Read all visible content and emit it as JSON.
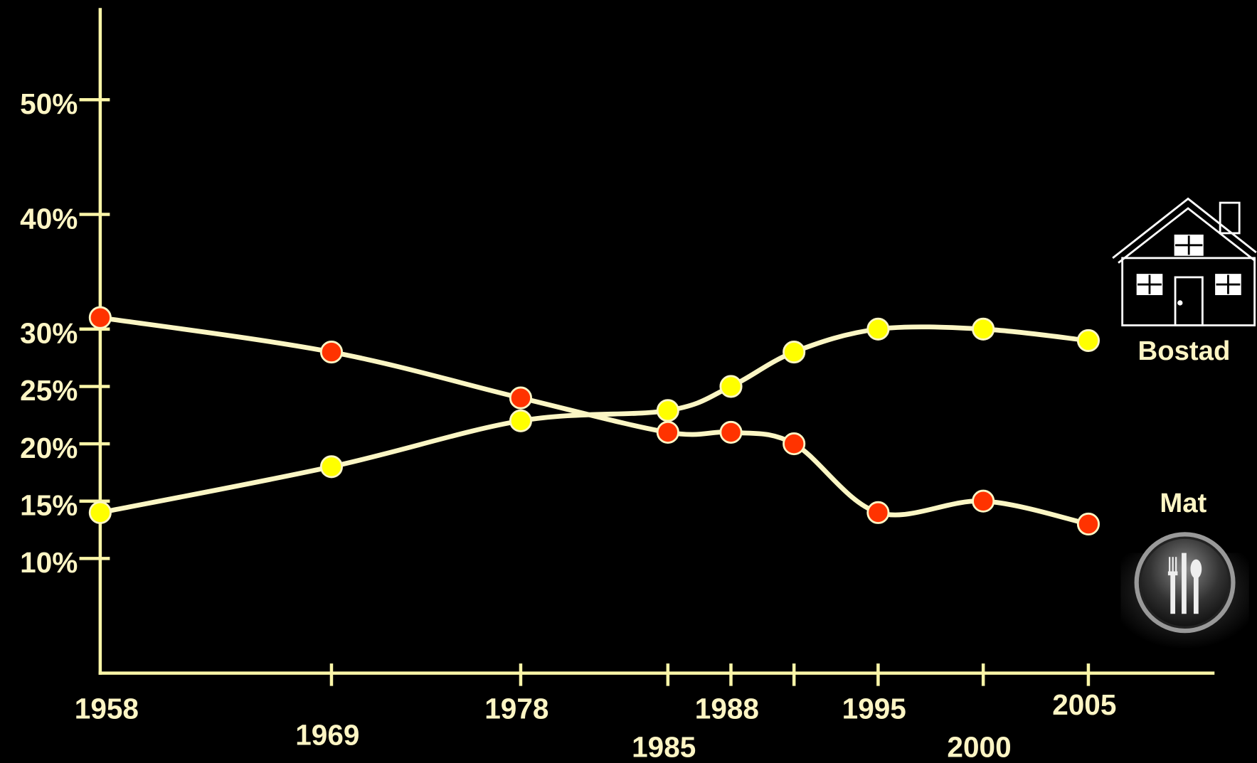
{
  "chart_data": {
    "type": "line",
    "x": [
      1958,
      1969,
      1978,
      1985,
      1988,
      1991,
      1995,
      2000,
      2005
    ],
    "xlim": [
      1958,
      2011
    ],
    "xticks": [
      1958,
      1969,
      1978,
      1985,
      1988,
      {
        "value": 1991,
        "label": null
      },
      1995,
      2000,
      2005
    ],
    "ylim": [
      0,
      58
    ],
    "yticks": [
      {
        "value": 10,
        "label": "10%"
      },
      {
        "value": 15,
        "label": "15%"
      },
      {
        "value": 20,
        "label": "20%"
      },
      {
        "value": 25,
        "label": "25%"
      },
      {
        "value": 30,
        "label": "30%"
      },
      {
        "value": 40,
        "label": "40%"
      },
      {
        "value": 50,
        "label": "50%"
      }
    ],
    "line_color": "#fbf6c4",
    "series": [
      {
        "name": "Bostad",
        "color": "#ffff00",
        "values": [
          14,
          18,
          22,
          22.9,
          25,
          28,
          30,
          30,
          29
        ]
      },
      {
        "name": "Mat",
        "color": "#ff3300",
        "values": [
          31,
          28,
          24,
          21,
          21,
          20,
          14,
          15,
          13
        ]
      }
    ]
  }
}
